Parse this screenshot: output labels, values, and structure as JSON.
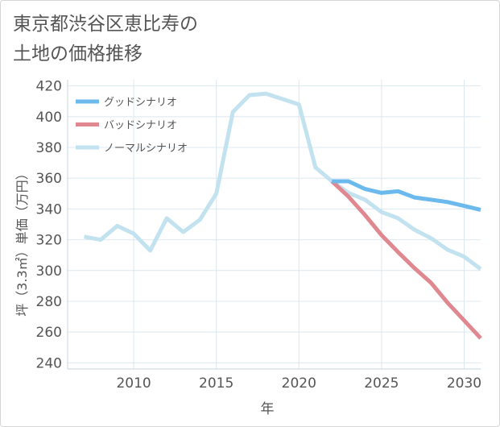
{
  "chart_data": {
    "type": "line",
    "title_lines": [
      "東京都渋谷区恵比寿の",
      "土地の価格推移"
    ],
    "xlabel": "年",
    "ylabel": "坪（3.3㎡）単価（万円）",
    "xlim": [
      2006,
      2031
    ],
    "ylim": [
      236,
      424
    ],
    "x_ticks": [
      2010,
      2015,
      2020,
      2025,
      2030
    ],
    "y_ticks": [
      240,
      260,
      280,
      300,
      320,
      340,
      360,
      380,
      400,
      420
    ],
    "legend_position": "top-left",
    "series": [
      {
        "name": "グッドシナリオ",
        "color": "#6bb9ed",
        "x": [
          2022,
          2023,
          2024,
          2025,
          2026,
          2027,
          2028,
          2029,
          2030,
          2031
        ],
        "y": [
          358,
          358,
          353,
          350.5,
          351.5,
          347.5,
          346,
          344.5,
          342,
          339.5
        ]
      },
      {
        "name": "バッドシナリオ",
        "color": "#e08890",
        "x": [
          2022,
          2023,
          2024,
          2025,
          2026,
          2027,
          2028,
          2029,
          2030,
          2031
        ],
        "y": [
          358,
          348,
          336,
          323,
          312,
          301.5,
          292,
          279,
          267.5,
          256
        ]
      },
      {
        "name": "ノーマルシナリオ",
        "color": "#c2e2ef",
        "x": [
          2007,
          2008,
          2009,
          2010,
          2011,
          2012,
          2013,
          2014,
          2015,
          2016,
          2017,
          2018,
          2019,
          2020,
          2021,
          2022,
          2023,
          2024,
          2025,
          2026,
          2027,
          2028,
          2029,
          2030,
          2031
        ],
        "y": [
          322,
          320,
          329,
          324,
          313,
          334,
          325,
          333,
          350,
          403,
          414,
          415,
          411.5,
          408,
          367,
          358,
          350.5,
          346,
          338,
          334,
          326.5,
          321,
          313.5,
          309,
          301
        ]
      }
    ]
  }
}
